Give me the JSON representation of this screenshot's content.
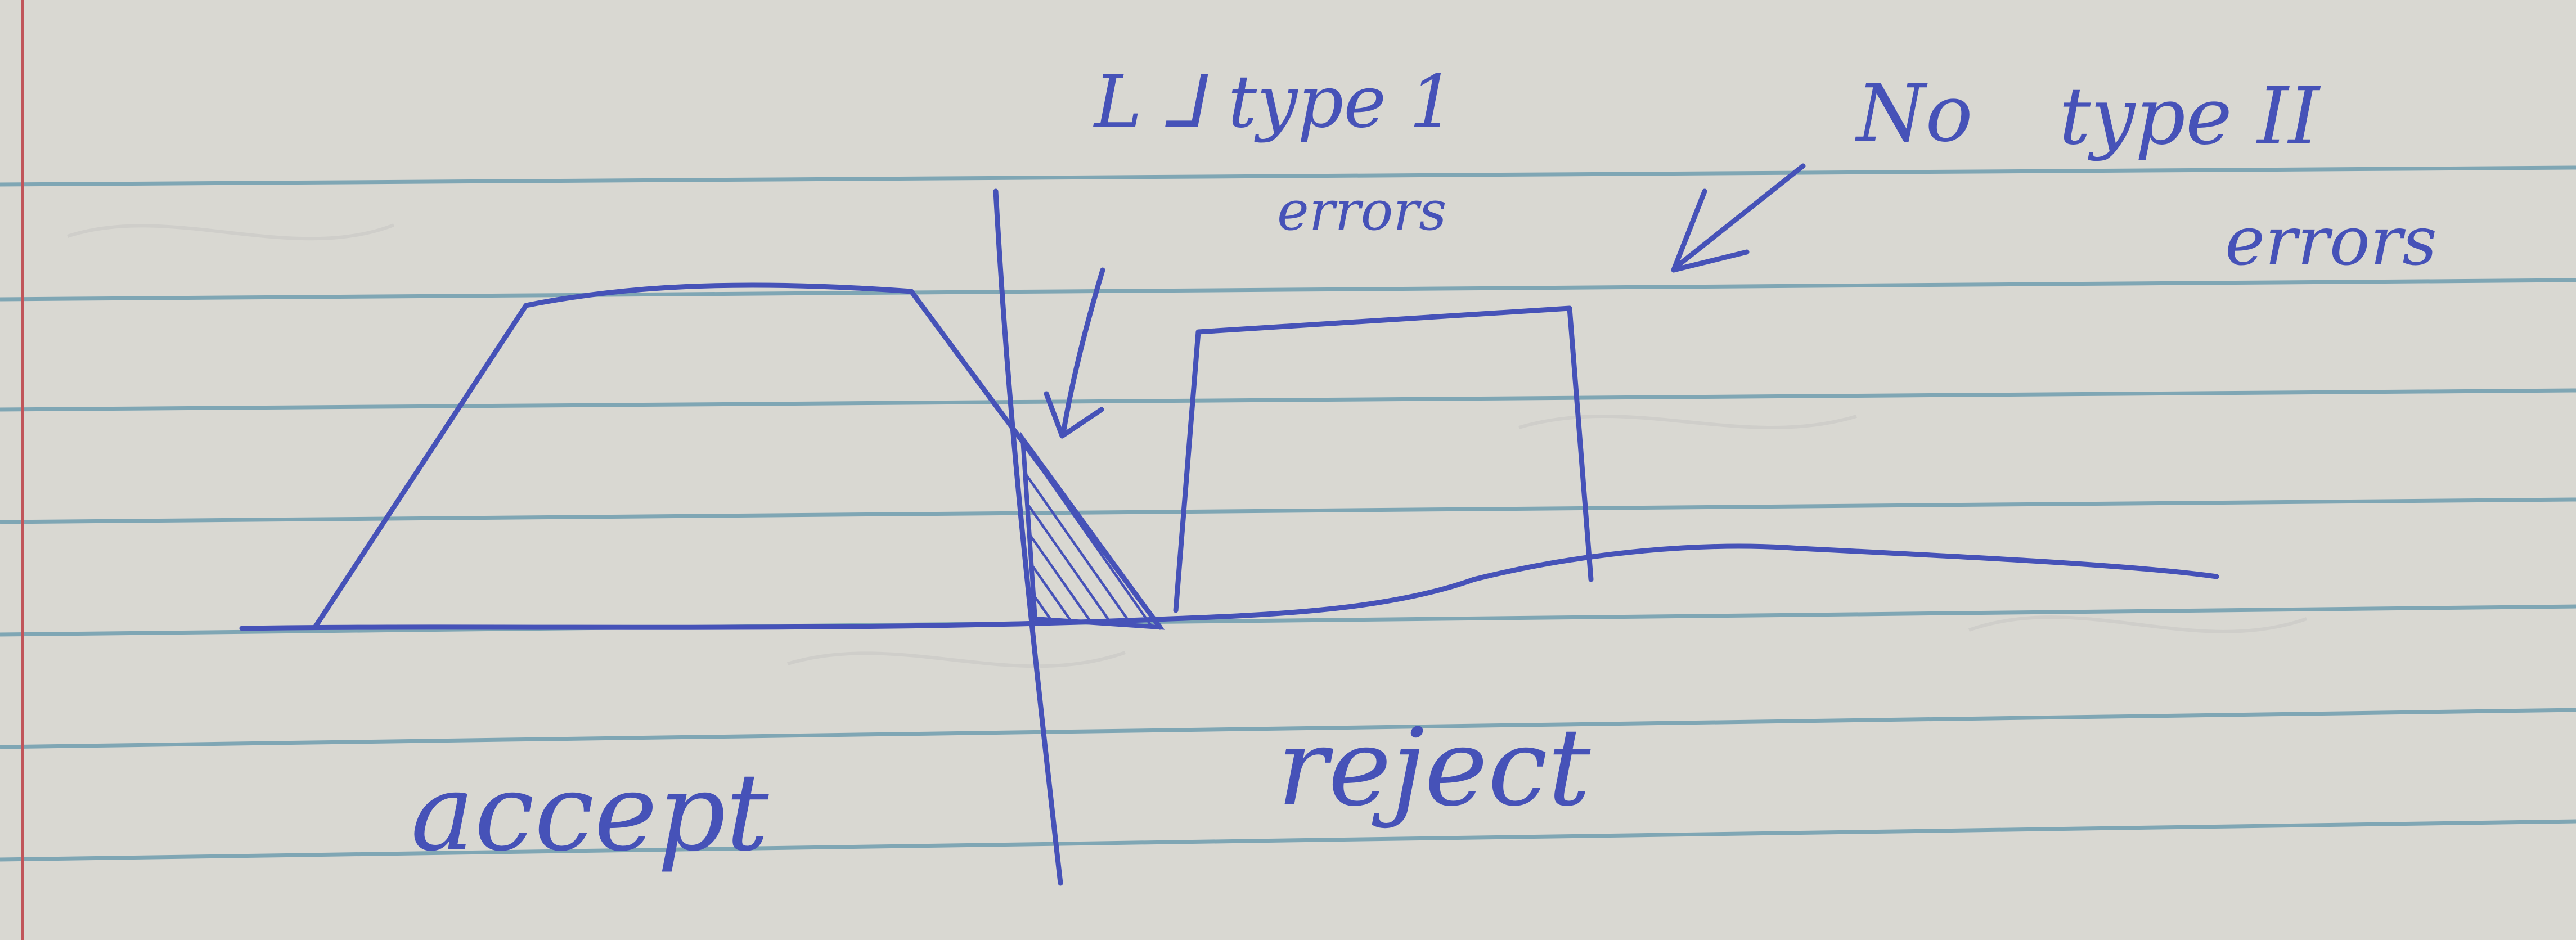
{
  "colors": {
    "paper": "#d9d8d2",
    "rule_line": "#7fa6b4",
    "margin_line": "#c0555a",
    "ink": "#4652b8"
  },
  "annotations": {
    "type1_line1": "L ⅃ type 1",
    "type1_line2": "errors",
    "type2_no": "No",
    "type2_type": "type II",
    "type2_errors": "errors"
  },
  "regions": {
    "accept": "accept",
    "reject": "reject"
  },
  "icons": {
    "type1_arrow": "arrow-down-icon",
    "type2_arrow": "arrow-down-left-icon"
  }
}
